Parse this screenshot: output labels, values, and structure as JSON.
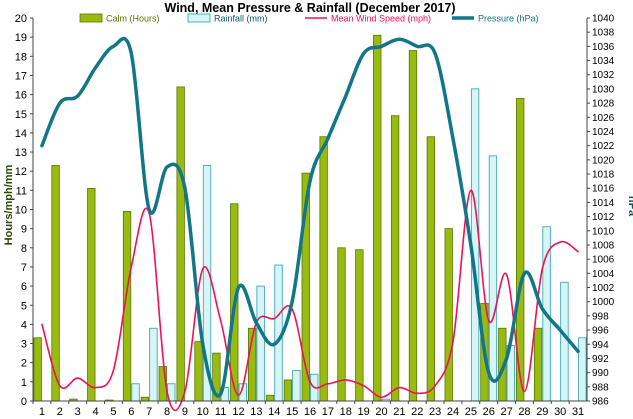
{
  "chart_data": {
    "type": "bar",
    "title": "Wind, Mean Pressure & Rainfall (December 2017)",
    "ylabel_left": "Hours/mph/mm",
    "ylabel_right": "hPa",
    "categories": [
      "1",
      "2",
      "3",
      "4",
      "5",
      "6",
      "7",
      "8",
      "9",
      "10",
      "11",
      "12",
      "13",
      "14",
      "15",
      "16",
      "17",
      "18",
      "19",
      "20",
      "21",
      "22",
      "23",
      "24",
      "25",
      "26",
      "27",
      "28",
      "29",
      "30",
      "31"
    ],
    "ylim_left": [
      0,
      20
    ],
    "yticks_left": [
      "0",
      "1",
      "2",
      "3",
      "4",
      "5",
      "6",
      "7",
      "8",
      "9",
      "10",
      "11",
      "12",
      "13",
      "14",
      "15",
      "16",
      "17",
      "18",
      "19",
      "20"
    ],
    "ylim_right": [
      986,
      1040
    ],
    "yticks_right": [
      "986",
      "988",
      "990",
      "992",
      "994",
      "996",
      "998",
      "1000",
      "1002",
      "1004",
      "1006",
      "1008",
      "1010",
      "1012",
      "1014",
      "1016",
      "1018",
      "1020",
      "1022",
      "1024",
      "1026",
      "1028",
      "1030",
      "1032",
      "1034",
      "1036",
      "1038",
      "1040"
    ],
    "grid": false,
    "legend_position": "top",
    "series": [
      {
        "name": "Calm (Hours)",
        "type": "bar",
        "axis": "left",
        "color": "#99bb11",
        "values": [
          3.3,
          12.3,
          0.1,
          11.1,
          0.05,
          9.9,
          0.2,
          1.8,
          16.4,
          3.1,
          2.5,
          10.3,
          3.8,
          0.3,
          1.1,
          11.9,
          13.8,
          8.0,
          7.9,
          19.1,
          14.9,
          18.3,
          13.8,
          9.0,
          0,
          5.1,
          3.8,
          15.8,
          3.8,
          0,
          0
        ]
      },
      {
        "name": "Rainfall (mm)",
        "type": "bar",
        "axis": "left",
        "color": "#d8f4f4",
        "values": [
          0,
          0,
          0,
          0,
          0,
          0.9,
          3.8,
          0.9,
          0,
          12.3,
          0.7,
          0.9,
          6.0,
          7.1,
          1.6,
          1.4,
          0,
          0,
          0,
          0.1,
          0,
          0,
          0,
          0,
          16.3,
          12.8,
          2.9,
          0,
          9.1,
          6.2,
          3.3
        ]
      },
      {
        "name": "Mean Wind Speed (mph)",
        "type": "line",
        "axis": "left",
        "color": "#ee1155",
        "values": [
          4.0,
          0.8,
          1.2,
          0.7,
          1.6,
          7.0,
          9.8,
          0.5,
          0.5,
          6.9,
          4.2,
          0.3,
          4.1,
          4.3,
          4.8,
          1.0,
          0.9,
          1.1,
          0.8,
          0.2,
          0.7,
          0.4,
          0.8,
          3.1,
          11.0,
          4.2,
          6.6,
          0.5,
          6.9,
          8.3,
          7.8
        ]
      },
      {
        "name": "Pressure (hPa)",
        "type": "line",
        "axis": "right",
        "color": "#117788",
        "values": [
          1022,
          1028,
          1029,
          1033,
          1036,
          1035,
          1013,
          1019,
          1016,
          994,
          987,
          1002,
          997,
          994,
          1000,
          1017,
          1023,
          1029,
          1035,
          1036,
          1037,
          1036,
          1035,
          1023,
          1008,
          990,
          992,
          1004,
          999,
          996,
          993
        ]
      }
    ]
  }
}
